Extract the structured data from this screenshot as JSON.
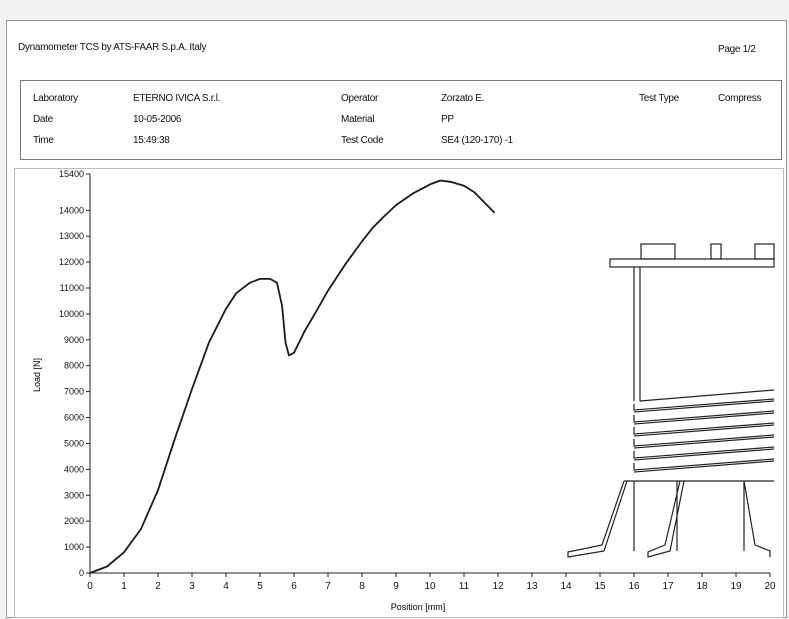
{
  "report": {
    "title": "Dynamometer TCS by ATS-FAAR S.p.A. Italy",
    "page": "Page 1/2"
  },
  "info": {
    "laboratory_label": "Laboratory",
    "laboratory_value": "ETERNO IVICA S.r.l.",
    "date_label": "Date",
    "date_value": "10-05-2006",
    "time_label": "Time",
    "time_value": "15:49:38",
    "operator_label": "Operator",
    "operator_value": "Zorzato E.",
    "material_label": "Material",
    "material_value": "PP",
    "testcode_label": "Test Code",
    "testcode_value": "SE4 (120-170) -1",
    "testtype_label": "Test Type",
    "testtype_value": "Compress"
  },
  "chart_data": {
    "type": "line",
    "xlabel": "Position [mm]",
    "ylabel": "Load [N]",
    "xlim": [
      0,
      20
    ],
    "ylim": [
      0,
      15400
    ],
    "x_ticks": [
      0,
      1,
      2,
      3,
      4,
      5,
      6,
      7,
      8,
      9,
      10,
      11,
      12,
      13,
      14,
      15,
      16,
      17,
      18,
      19,
      20
    ],
    "y_ticks": [
      0,
      1000,
      2000,
      3000,
      4000,
      5000,
      6000,
      7000,
      8000,
      9000,
      10000,
      11000,
      12000,
      13000,
      14000,
      15400
    ],
    "grid": false,
    "series": [
      {
        "points": [
          [
            0,
            0
          ],
          [
            0.5,
            250
          ],
          [
            1,
            800
          ],
          [
            1.5,
            1700
          ],
          [
            2,
            3200
          ],
          [
            2.5,
            5200
          ],
          [
            3,
            7100
          ],
          [
            3.5,
            8900
          ],
          [
            4,
            10200
          ],
          [
            4.3,
            10800
          ],
          [
            4.7,
            11200
          ],
          [
            5,
            11350
          ],
          [
            5.3,
            11350
          ],
          [
            5.5,
            11200
          ],
          [
            5.65,
            10300
          ],
          [
            5.75,
            8900
          ],
          [
            5.85,
            8400
          ],
          [
            6,
            8500
          ],
          [
            6.3,
            9300
          ],
          [
            6.7,
            10200
          ],
          [
            7,
            10900
          ],
          [
            7.5,
            11900
          ],
          [
            8,
            12800
          ],
          [
            8.3,
            13300
          ],
          [
            8.6,
            13700
          ],
          [
            9,
            14200
          ],
          [
            9.5,
            14650
          ],
          [
            10,
            15000
          ],
          [
            10.3,
            15150
          ],
          [
            10.6,
            15100
          ],
          [
            11,
            14950
          ],
          [
            11.3,
            14700
          ],
          [
            11.6,
            14300
          ],
          [
            11.9,
            13900
          ]
        ]
      }
    ]
  }
}
